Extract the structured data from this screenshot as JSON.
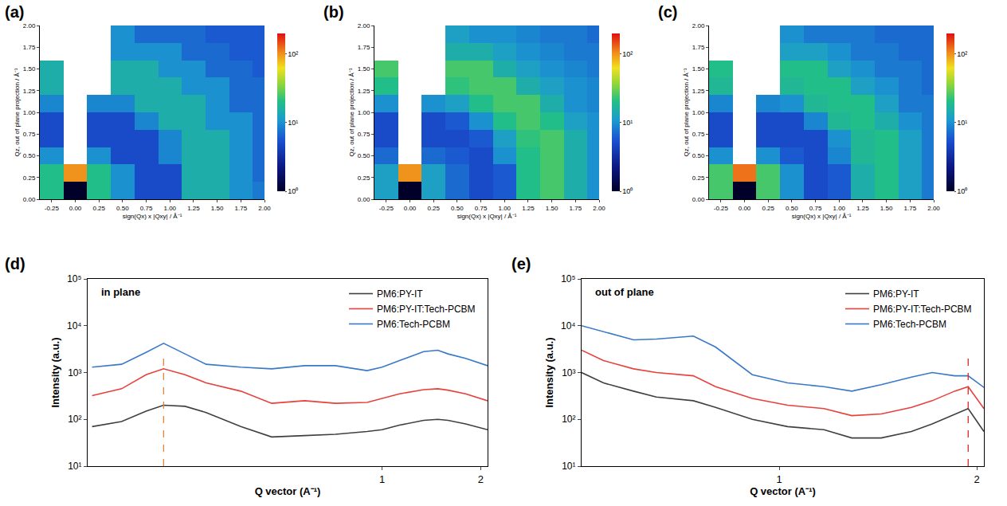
{
  "chart_data": [
    {
      "type": "heatmap",
      "panel_label": "(a)",
      "x_label": "sign(Qx) x |Qxy| / Å⁻¹",
      "y_label": "Qz, out of plane projection / Å⁻¹",
      "xlim": [
        -0.375,
        2.0
      ],
      "ylim": [
        0,
        2.0
      ],
      "xticks": [
        -0.25,
        {
          "value": 0,
          "label": "0.00"
        },
        0.25,
        {
          "value": 0.5,
          "label": "0.50"
        },
        0.75,
        {
          "value": 1,
          "label": "1.00"
        },
        1.25,
        {
          "value": 1.5,
          "label": "1.50"
        },
        1.75,
        {
          "value": 2,
          "label": "2.00"
        }
      ],
      "yticks": [
        {
          "value": 0,
          "label": "0.00"
        },
        0.25,
        {
          "value": 0.5,
          "label": "0.50"
        },
        0.75,
        {
          "value": 1,
          "label": "1.00"
        },
        1.25,
        {
          "value": 1.5,
          "label": "1.50"
        },
        1.75,
        {
          "value": 2,
          "label": "2.00"
        }
      ],
      "x": [
        -0.25,
        0,
        0.25,
        0.5,
        0.75,
        1.0,
        1.25,
        1.5,
        1.75,
        2.0
      ],
      "y": [
        0.1,
        0.3,
        0.5,
        0.7,
        0.9,
        1.1,
        1.3,
        1.5,
        1.7,
        1.9
      ],
      "cells": [
        [
          20,
          1,
          20,
          10,
          5,
          5,
          15,
          15,
          10,
          8
        ],
        [
          20,
          100,
          20,
          10,
          5,
          5,
          15,
          15,
          10,
          7
        ],
        [
          10,
          null,
          10,
          5,
          5,
          9,
          15,
          15,
          10,
          7
        ],
        [
          5,
          null,
          5,
          5,
          5,
          9,
          15,
          15,
          10,
          7
        ],
        [
          5,
          null,
          5,
          5,
          9,
          15,
          15,
          10,
          10,
          7
        ],
        [
          9,
          null,
          9,
          9,
          15,
          15,
          15,
          10,
          7,
          7
        ],
        [
          15,
          null,
          null,
          15,
          15,
          15,
          10,
          10,
          7,
          7
        ],
        [
          15,
          null,
          null,
          15,
          15,
          10,
          10,
          7,
          7,
          6
        ],
        [
          null,
          null,
          null,
          10,
          10,
          10,
          7,
          7,
          6,
          6
        ],
        [
          null,
          null,
          null,
          10,
          7,
          7,
          7,
          6,
          6,
          6
        ]
      ],
      "colorbar": {
        "log": true,
        "range": [
          1,
          200
        ],
        "ticks": [
          {
            "value": 1,
            "label": "10⁰"
          },
          {
            "value": 10,
            "label": "10¹"
          },
          {
            "value": 100,
            "label": "10²"
          }
        ]
      }
    },
    {
      "type": "heatmap",
      "panel_label": "(b)",
      "x_label": "sign(Qx) x |Qxy| / Å⁻¹",
      "y_label": "Qz, out of plane projection / Å⁻¹",
      "xlim": [
        -0.375,
        2.0
      ],
      "ylim": [
        0,
        2.0
      ],
      "xticks": [
        -0.25,
        {
          "value": 0,
          "label": "0.00"
        },
        0.25,
        {
          "value": 0.5,
          "label": "0.50"
        },
        0.75,
        {
          "value": 1,
          "label": "1.00"
        },
        1.25,
        {
          "value": 1.5,
          "label": "1.50"
        },
        1.75,
        {
          "value": 2,
          "label": "2.00"
        }
      ],
      "yticks": [
        {
          "value": 0,
          "label": "0.00"
        },
        0.25,
        {
          "value": 0.5,
          "label": "0.50"
        },
        0.75,
        {
          "value": 1,
          "label": "1.00"
        },
        1.25,
        {
          "value": 1.5,
          "label": "1.50"
        },
        1.75,
        {
          "value": 2,
          "label": "2.00"
        }
      ],
      "x": [
        -0.25,
        0,
        0.25,
        0.5,
        0.75,
        1.0,
        1.25,
        1.5,
        1.75,
        2.0
      ],
      "y": [
        0.1,
        0.3,
        0.5,
        0.7,
        0.9,
        1.1,
        1.3,
        1.5,
        1.7,
        1.9
      ],
      "cells": [
        [
          12,
          1,
          12,
          7,
          5,
          6,
          20,
          25,
          15,
          10
        ],
        [
          12,
          100,
          12,
          7,
          5,
          6,
          20,
          25,
          15,
          10
        ],
        [
          7,
          null,
          7,
          6,
          5,
          10,
          20,
          25,
          15,
          10
        ],
        [
          5,
          null,
          5,
          5,
          6,
          12,
          22,
          25,
          15,
          10
        ],
        [
          5,
          null,
          5,
          6,
          10,
          20,
          25,
          20,
          12,
          10
        ],
        [
          10,
          null,
          10,
          12,
          20,
          25,
          25,
          15,
          10,
          9
        ],
        [
          20,
          null,
          null,
          22,
          25,
          25,
          15,
          12,
          10,
          9
        ],
        [
          25,
          null,
          null,
          25,
          25,
          15,
          12,
          10,
          9,
          8
        ],
        [
          null,
          null,
          null,
          15,
          15,
          12,
          10,
          9,
          8,
          8
        ],
        [
          null,
          null,
          null,
          12,
          10,
          10,
          9,
          8,
          8,
          7
        ]
      ],
      "colorbar": {
        "log": true,
        "range": [
          1,
          200
        ],
        "ticks": [
          {
            "value": 1,
            "label": "10⁰"
          },
          {
            "value": 10,
            "label": "10¹"
          },
          {
            "value": 100,
            "label": "10²"
          }
        ]
      }
    },
    {
      "type": "heatmap",
      "panel_label": "(c)",
      "x_label": "sign(Qx) x |Qxy| / Å⁻¹",
      "y_label": "Qz, out of plane projection / Å⁻¹",
      "xlim": [
        -0.375,
        2.0
      ],
      "ylim": [
        0,
        2.0
      ],
      "xticks": [
        -0.25,
        {
          "value": 0,
          "label": "0.00"
        },
        0.25,
        {
          "value": 0.5,
          "label": "0.50"
        },
        0.75,
        {
          "value": 1,
          "label": "1.00"
        },
        1.25,
        {
          "value": 1.5,
          "label": "1.50"
        },
        1.75,
        {
          "value": 2,
          "label": "2.00"
        }
      ],
      "yticks": [
        {
          "value": 0,
          "label": "0.00"
        },
        0.25,
        {
          "value": 0.5,
          "label": "0.50"
        },
        0.75,
        {
          "value": 1,
          "label": "1.00"
        },
        1.25,
        {
          "value": 1.5,
          "label": "1.50"
        },
        1.75,
        {
          "value": 2,
          "label": "2.00"
        }
      ],
      "x": [
        -0.25,
        0,
        0.25,
        0.5,
        0.75,
        1.0,
        1.25,
        1.5,
        1.75,
        2.0
      ],
      "y": [
        0.1,
        0.3,
        0.5,
        0.7,
        0.9,
        1.1,
        1.3,
        1.5,
        1.7,
        1.9
      ],
      "cells": [
        [
          25,
          1,
          25,
          10,
          5,
          6,
          15,
          20,
          12,
          8
        ],
        [
          25,
          120,
          25,
          10,
          5,
          6,
          15,
          20,
          12,
          8
        ],
        [
          10,
          null,
          10,
          6,
          5,
          9,
          18,
          20,
          12,
          8
        ],
        [
          5,
          null,
          5,
          5,
          5,
          10,
          18,
          20,
          12,
          8
        ],
        [
          5,
          null,
          5,
          5,
          9,
          18,
          20,
          15,
          10,
          8
        ],
        [
          9,
          null,
          9,
          10,
          18,
          20,
          20,
          12,
          8,
          8
        ],
        [
          18,
          null,
          null,
          18,
          20,
          20,
          12,
          10,
          8,
          7
        ],
        [
          20,
          null,
          null,
          20,
          20,
          12,
          10,
          8,
          8,
          7
        ],
        [
          null,
          null,
          null,
          12,
          12,
          10,
          8,
          8,
          7,
          7
        ],
        [
          null,
          null,
          null,
          10,
          8,
          8,
          8,
          7,
          7,
          7
        ]
      ],
      "colorbar": {
        "log": true,
        "range": [
          1,
          200
        ],
        "ticks": [
          {
            "value": 1,
            "label": "10⁰"
          },
          {
            "value": 10,
            "label": "10¹"
          },
          {
            "value": 100,
            "label": "10²"
          }
        ]
      }
    },
    {
      "type": "line",
      "panel_label": "(d)",
      "annotation": "in plane",
      "x_label": "Q vector (A⁻¹)",
      "y_label": "Intensity (a.u.)",
      "log": true,
      "legend": "top right",
      "xlim": [
        0.126,
        2.1
      ],
      "ylim": [
        10,
        100000
      ],
      "xticks": [
        1,
        2
      ],
      "yticks": [
        {
          "value": 10,
          "label": "10¹"
        },
        {
          "value": 100,
          "label": "10²"
        },
        {
          "value": 1000,
          "label": "10³"
        },
        {
          "value": 10000,
          "label": "10⁴"
        },
        {
          "value": 100000,
          "label": "10⁵"
        }
      ],
      "reference_lines": [
        {
          "x": 0.215,
          "color": "#e8843c",
          "line_style": "dash"
        }
      ],
      "x": [
        0.13,
        0.16,
        0.19,
        0.215,
        0.25,
        0.29,
        0.37,
        0.46,
        0.58,
        0.72,
        0.9,
        1.0,
        1.13,
        1.34,
        1.48,
        1.59,
        1.8,
        2.1
      ],
      "series": [
        {
          "name": "PM6:PY-IT",
          "color": "#404040",
          "values": [
            70,
            90,
            150,
            200,
            190,
            140,
            70,
            42,
            45,
            48,
            55,
            60,
            75,
            95,
            100,
            95,
            80,
            60
          ]
        },
        {
          "name": "PM6:PY-IT:Tech-PCBM",
          "color": "#e8413c",
          "values": [
            320,
            450,
            900,
            1200,
            900,
            600,
            400,
            220,
            250,
            220,
            230,
            280,
            350,
            430,
            450,
            420,
            350,
            250
          ]
        },
        {
          "name": "PM6:Tech-PCBM",
          "color": "#3a78c8",
          "values": [
            1300,
            1500,
            2700,
            4200,
            2500,
            1500,
            1300,
            1200,
            1400,
            1400,
            1100,
            1300,
            1800,
            2800,
            3000,
            2500,
            2000,
            1400
          ]
        }
      ]
    },
    {
      "type": "line",
      "panel_label": "(e)",
      "annotation": "out of plane",
      "x_label": "Q vector (A⁻¹)",
      "y_label": "Intensity (a.u.)",
      "log": true,
      "legend": "top right",
      "xlim": [
        0.5,
        2.05
      ],
      "ylim": [
        10,
        100000
      ],
      "xticks": [
        1,
        2
      ],
      "yticks": [
        {
          "value": 10,
          "label": "10¹"
        },
        {
          "value": 100,
          "label": "10²"
        },
        {
          "value": 1000,
          "label": "10³"
        },
        {
          "value": 10000,
          "label": "10⁴"
        },
        {
          "value": 100000,
          "label": "10⁵"
        }
      ],
      "reference_lines": [
        {
          "x": 1.94,
          "color": "#d62728",
          "line_style": "dash"
        }
      ],
      "x": [
        0.5,
        0.54,
        0.6,
        0.65,
        0.74,
        0.8,
        0.91,
        1.03,
        1.17,
        1.29,
        1.43,
        1.59,
        1.71,
        1.85,
        1.94,
        2.05
      ],
      "series": [
        {
          "name": "PM6:PY-IT",
          "color": "#404040",
          "values": [
            1000,
            600,
            400,
            300,
            250,
            180,
            100,
            70,
            60,
            40,
            40,
            55,
            80,
            130,
            170,
            55
          ]
        },
        {
          "name": "PM6:PY-IT:Tech-PCBM",
          "color": "#e8413c",
          "values": [
            3000,
            1800,
            1200,
            1000,
            850,
            500,
            280,
            200,
            170,
            120,
            130,
            180,
            250,
            400,
            500,
            170
          ]
        },
        {
          "name": "PM6:Tech-PCBM",
          "color": "#3a78c8",
          "values": [
            10000,
            7500,
            5000,
            5200,
            6000,
            3500,
            900,
            600,
            500,
            400,
            550,
            800,
            1000,
            850,
            850,
            480
          ]
        }
      ]
    }
  ]
}
